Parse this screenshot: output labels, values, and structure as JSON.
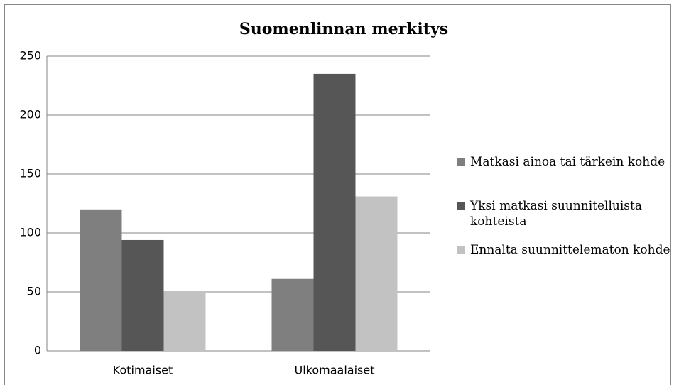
{
  "chart_data": {
    "type": "bar",
    "title": "Suomenlinnan merkitys",
    "categories": [
      "Kotimaiset",
      "Ulkomaalaiset"
    ],
    "series": [
      {
        "name": "Matkasi ainoa tai tärkein kohde",
        "color": "#7f7f7f",
        "values": [
          120,
          61
        ]
      },
      {
        "name": "Yksi matkasi suunnitelluista kohteista",
        "color": "#565656",
        "values": [
          94,
          235
        ]
      },
      {
        "name": "Ennalta suunnittelematon kohde",
        "color": "#c2c2c2",
        "values": [
          49,
          131
        ]
      }
    ],
    "ylim": [
      0,
      250
    ],
    "yticks": [
      0,
      50,
      100,
      150,
      200,
      250
    ],
    "grid": true,
    "legend": "right"
  }
}
